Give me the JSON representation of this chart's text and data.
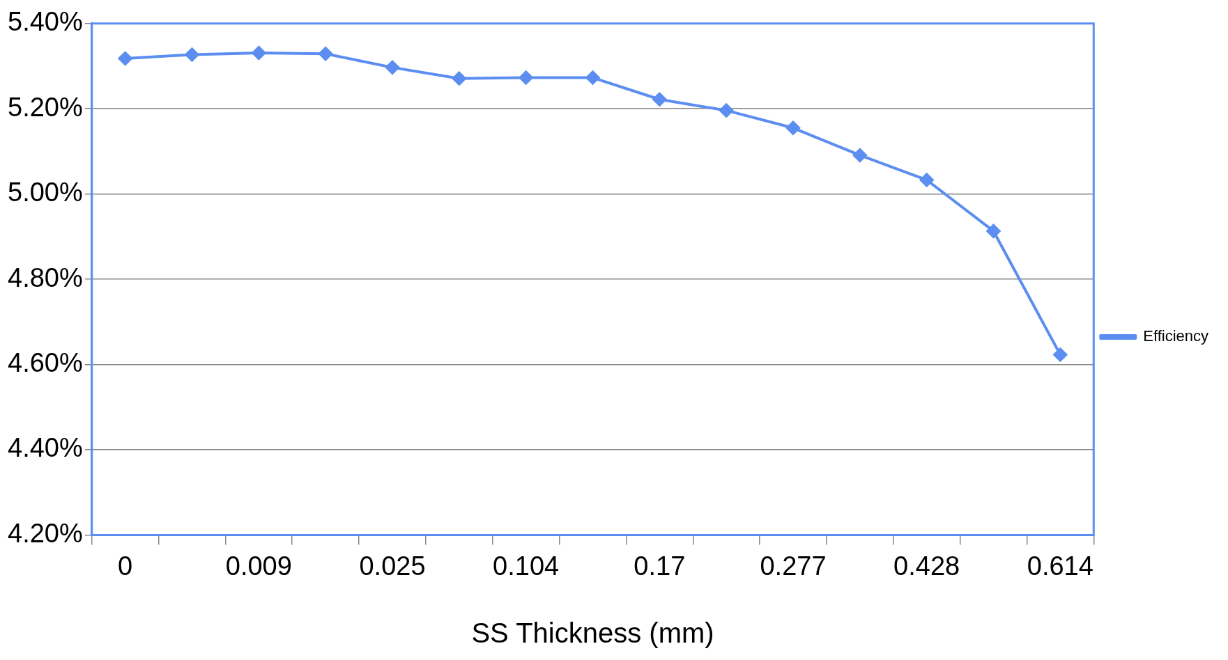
{
  "chart_data": {
    "type": "line",
    "xlabel": "SS Thickness (mm)",
    "categories": [
      "0",
      null,
      "0.009",
      null,
      "0.025",
      null,
      "0.104",
      null,
      "0.17",
      null,
      "0.277",
      null,
      "0.428",
      null,
      "0.614"
    ],
    "series": [
      {
        "name": "Efficiency",
        "color": "#5b8ef0",
        "values": [
          5.318,
          5.327,
          5.331,
          5.329,
          5.297,
          5.271,
          5.273,
          5.273,
          5.222,
          5.196,
          5.155,
          5.091,
          5.033,
          4.913,
          4.623
        ]
      }
    ],
    "ylim": [
      4.2,
      5.4
    ],
    "yticks": [
      {
        "value": 4.2,
        "label": "4.20%"
      },
      {
        "value": 4.4,
        "label": "4.40%"
      },
      {
        "value": 4.6,
        "label": "4.60%"
      },
      {
        "value": 4.8,
        "label": "4.80%"
      },
      {
        "value": 5.0,
        "label": "5.00%"
      },
      {
        "value": 5.2,
        "label": "5.20%"
      },
      {
        "value": 5.4,
        "label": "5.40%"
      }
    ],
    "grid": "y",
    "legend": "right",
    "marker": "diamond",
    "line_style": "solid"
  }
}
